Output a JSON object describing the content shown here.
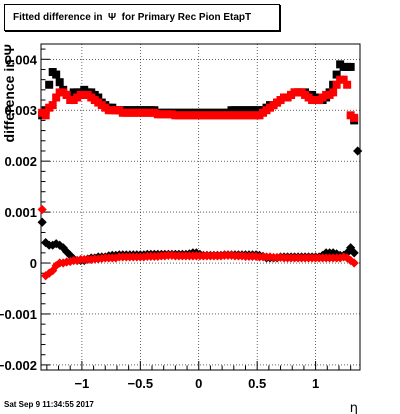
{
  "title": "Fitted difference in  Ψ  for Primary Rec Pion EtapT",
  "timestamp": "Sat Sep  9 11:34:55 2017",
  "chart_data": {
    "type": "scatter",
    "title": "Fitted difference in  Ψ  for Primary Rec Pion EtapT",
    "xlabel": "η",
    "ylabel": "difference in Ψ",
    "xlim": [
      -1.35,
      1.38
    ],
    "ylim": [
      -0.0021,
      0.0043
    ],
    "x_ticks": [
      -1,
      -0.5,
      0,
      0.5,
      1
    ],
    "x_tick_labels": [
      "−1",
      "−0.5",
      "0",
      "0.5",
      "1"
    ],
    "y_ticks": [
      -0.002,
      -0.001,
      0,
      0.001,
      0.002,
      0.003,
      0.004
    ],
    "y_tick_labels": [
      "−0.002",
      "−0.001",
      "0",
      "0.001",
      "0.002",
      "0.003",
      "0.004"
    ],
    "grid": true,
    "series": [
      {
        "color": "#000000",
        "marker": "square",
        "x": [
          -1.34,
          -1.31,
          -1.28,
          -1.25,
          -1.22,
          -1.19,
          -1.16,
          -1.13,
          -1.1,
          -1.07,
          -1.04,
          -1.01,
          -0.98,
          -0.95,
          -0.92,
          -0.89,
          -0.86,
          -0.83,
          -0.8,
          -0.77,
          -0.74,
          -0.71,
          -0.68,
          -0.65,
          -0.62,
          -0.59,
          -0.56,
          -0.53,
          -0.5,
          -0.47,
          -0.44,
          -0.41,
          -0.38,
          -0.35,
          -0.32,
          -0.29,
          -0.26,
          -0.23,
          -0.2,
          -0.17,
          -0.14,
          -0.11,
          -0.08,
          -0.05,
          -0.02,
          0.01,
          0.04,
          0.07,
          0.1,
          0.13,
          0.16,
          0.19,
          0.22,
          0.25,
          0.28,
          0.31,
          0.34,
          0.37,
          0.4,
          0.43,
          0.46,
          0.49,
          0.52,
          0.55,
          0.58,
          0.61,
          0.64,
          0.67,
          0.7,
          0.73,
          0.76,
          0.79,
          0.82,
          0.85,
          0.88,
          0.91,
          0.94,
          0.97,
          1.0,
          1.03,
          1.06,
          1.09,
          1.12,
          1.15,
          1.18,
          1.21,
          1.24,
          1.27,
          1.3,
          1.33
        ],
        "y": [
          0.0029,
          0.003,
          0.0035,
          0.00375,
          0.0037,
          0.00355,
          0.0034,
          0.0033,
          0.0033,
          0.00335,
          0.00335,
          0.00335,
          0.0034,
          0.00335,
          0.00335,
          0.0033,
          0.00325,
          0.00315,
          0.0031,
          0.00305,
          0.00305,
          0.003,
          0.003,
          0.003,
          0.003,
          0.003,
          0.003,
          0.003,
          0.003,
          0.003,
          0.003,
          0.003,
          0.003,
          0.00295,
          0.00295,
          0.00295,
          0.00295,
          0.00295,
          0.00295,
          0.00295,
          0.00295,
          0.00295,
          0.00295,
          0.00295,
          0.00295,
          0.00295,
          0.00295,
          0.00295,
          0.00295,
          0.00295,
          0.00295,
          0.00295,
          0.00295,
          0.00295,
          0.003,
          0.003,
          0.003,
          0.003,
          0.003,
          0.003,
          0.003,
          0.003,
          0.003,
          0.003,
          0.00305,
          0.0031,
          0.0031,
          0.00315,
          0.0032,
          0.00325,
          0.00325,
          0.0033,
          0.00335,
          0.00335,
          0.00335,
          0.00335,
          0.0033,
          0.0033,
          0.00325,
          0.0032,
          0.0032,
          0.00325,
          0.00335,
          0.0035,
          0.0037,
          0.0039,
          0.00385,
          0.00385,
          0.00385,
          0.0028
        ]
      },
      {
        "color": "#ff0000",
        "marker": "square",
        "x": [
          -1.34,
          -1.31,
          -1.28,
          -1.25,
          -1.22,
          -1.19,
          -1.16,
          -1.13,
          -1.1,
          -1.07,
          -1.04,
          -1.01,
          -0.98,
          -0.95,
          -0.92,
          -0.89,
          -0.86,
          -0.83,
          -0.8,
          -0.77,
          -0.74,
          -0.71,
          -0.68,
          -0.65,
          -0.62,
          -0.59,
          -0.56,
          -0.53,
          -0.5,
          -0.47,
          -0.44,
          -0.41,
          -0.38,
          -0.35,
          -0.32,
          -0.29,
          -0.26,
          -0.23,
          -0.2,
          -0.17,
          -0.14,
          -0.11,
          -0.08,
          -0.05,
          -0.02,
          0.01,
          0.04,
          0.07,
          0.1,
          0.13,
          0.16,
          0.19,
          0.22,
          0.25,
          0.28,
          0.31,
          0.34,
          0.37,
          0.4,
          0.43,
          0.46,
          0.49,
          0.52,
          0.55,
          0.58,
          0.61,
          0.64,
          0.67,
          0.7,
          0.73,
          0.76,
          0.79,
          0.82,
          0.85,
          0.88,
          0.91,
          0.94,
          0.97,
          1.0,
          1.03,
          1.06,
          1.09,
          1.12,
          1.15,
          1.18,
          1.21,
          1.24,
          1.27,
          1.3,
          1.33
        ],
        "y": [
          0.00295,
          0.0029,
          0.00305,
          0.0031,
          0.00325,
          0.00335,
          0.00335,
          0.0033,
          0.0032,
          0.0032,
          0.00325,
          0.0033,
          0.0033,
          0.0033,
          0.00325,
          0.0032,
          0.00315,
          0.0031,
          0.00305,
          0.003,
          0.003,
          0.003,
          0.003,
          0.00295,
          0.00295,
          0.00295,
          0.00295,
          0.00295,
          0.00295,
          0.00295,
          0.00295,
          0.00295,
          0.00295,
          0.00292,
          0.00292,
          0.00292,
          0.00292,
          0.00292,
          0.0029,
          0.0029,
          0.0029,
          0.0029,
          0.0029,
          0.0029,
          0.0029,
          0.0029,
          0.0029,
          0.0029,
          0.0029,
          0.0029,
          0.0029,
          0.0029,
          0.0029,
          0.0029,
          0.0029,
          0.0029,
          0.0029,
          0.0029,
          0.0029,
          0.0029,
          0.0029,
          0.0029,
          0.0029,
          0.00295,
          0.003,
          0.00305,
          0.0031,
          0.00315,
          0.0032,
          0.00325,
          0.00325,
          0.0033,
          0.00335,
          0.00335,
          0.00335,
          0.0033,
          0.00325,
          0.0032,
          0.0032,
          0.0032,
          0.00325,
          0.0033,
          0.0033,
          0.00335,
          0.0035,
          0.0036,
          0.0036,
          0.0035,
          0.0029,
          0.00285
        ]
      },
      {
        "color": "#000000",
        "marker": "diamond",
        "x": [
          -1.34,
          -1.31,
          -1.28,
          -1.25,
          -1.22,
          -1.19,
          -1.16,
          -1.13,
          -1.1,
          -1.07,
          -1.04,
          -1.01,
          -0.98,
          -0.95,
          -0.92,
          -0.89,
          -0.86,
          -0.83,
          -0.8,
          -0.77,
          -0.74,
          -0.71,
          -0.68,
          -0.65,
          -0.62,
          -0.59,
          -0.56,
          -0.53,
          -0.5,
          -0.47,
          -0.44,
          -0.41,
          -0.38,
          -0.35,
          -0.32,
          -0.29,
          -0.26,
          -0.23,
          -0.2,
          -0.17,
          -0.14,
          -0.11,
          -0.08,
          -0.05,
          -0.02,
          0.01,
          0.04,
          0.07,
          0.1,
          0.13,
          0.16,
          0.19,
          0.22,
          0.25,
          0.28,
          0.31,
          0.34,
          0.37,
          0.4,
          0.43,
          0.46,
          0.49,
          0.52,
          0.55,
          0.58,
          0.61,
          0.64,
          0.67,
          0.7,
          0.73,
          0.76,
          0.79,
          0.82,
          0.85,
          0.88,
          0.91,
          0.94,
          0.97,
          1.0,
          1.03,
          1.06,
          1.09,
          1.12,
          1.15,
          1.18,
          1.21,
          1.24,
          1.27,
          1.3,
          1.33,
          1.36
        ],
        "y": [
          0.0008,
          0.0004,
          0.00035,
          0.00035,
          0.00038,
          0.00035,
          0.0003,
          0.00022,
          0.00015,
          8e-05,
          5e-05,
          5e-05,
          5e-05,
          8e-05,
          0.0001,
          0.0001,
          0.00012,
          0.00012,
          0.00012,
          0.00014,
          0.00015,
          0.00015,
          0.00016,
          0.00016,
          0.00016,
          0.00016,
          0.00016,
          0.00016,
          0.00016,
          0.00016,
          0.00017,
          0.00017,
          0.00017,
          0.00017,
          0.00017,
          0.00017,
          0.00017,
          0.00017,
          0.00017,
          0.00017,
          0.00017,
          0.00017,
          0.00018,
          0.0002,
          0.0002,
          0.00017,
          0.00015,
          0.00015,
          0.00015,
          0.00015,
          0.00015,
          0.00015,
          0.00016,
          0.00016,
          0.00016,
          0.00016,
          0.00016,
          0.00016,
          0.00016,
          0.00016,
          0.00016,
          0.00016,
          0.00015,
          0.00013,
          0.0001,
          0.0001,
          0.0001,
          0.0001,
          0.00012,
          0.00012,
          0.00012,
          0.00012,
          0.00012,
          0.00012,
          0.00012,
          0.00012,
          0.00012,
          0.00012,
          0.00012,
          0.00012,
          0.00015,
          0.0002,
          0.0002,
          0.0002,
          0.00018,
          0.00015,
          0.00015,
          0.0002,
          0.0003,
          0.0002,
          0.0022
        ]
      },
      {
        "color": "#ff0000",
        "marker": "diamond",
        "x": [
          -1.34,
          -1.31,
          -1.28,
          -1.25,
          -1.22,
          -1.19,
          -1.16,
          -1.13,
          -1.1,
          -1.07,
          -1.04,
          -1.01,
          -0.98,
          -0.95,
          -0.92,
          -0.89,
          -0.86,
          -0.83,
          -0.8,
          -0.77,
          -0.74,
          -0.71,
          -0.68,
          -0.65,
          -0.62,
          -0.59,
          -0.56,
          -0.53,
          -0.5,
          -0.47,
          -0.44,
          -0.41,
          -0.38,
          -0.35,
          -0.32,
          -0.29,
          -0.26,
          -0.23,
          -0.2,
          -0.17,
          -0.14,
          -0.11,
          -0.08,
          -0.05,
          -0.02,
          0.01,
          0.04,
          0.07,
          0.1,
          0.13,
          0.16,
          0.19,
          0.22,
          0.25,
          0.28,
          0.31,
          0.34,
          0.37,
          0.4,
          0.43,
          0.46,
          0.49,
          0.52,
          0.55,
          0.58,
          0.61,
          0.64,
          0.67,
          0.7,
          0.73,
          0.76,
          0.79,
          0.82,
          0.85,
          0.88,
          0.91,
          0.94,
          0.97,
          1.0,
          1.03,
          1.06,
          1.09,
          1.12,
          1.15,
          1.18,
          1.21,
          1.24,
          1.27,
          1.3,
          1.33
        ],
        "y": [
          0.00105,
          -0.00025,
          -0.0002,
          -0.00015,
          -5e-05,
          0.0,
          0.0,
          2e-05,
          3e-05,
          5e-05,
          5e-05,
          7e-05,
          7e-05,
          7e-05,
          7e-05,
          8e-05,
          8e-05,
          9e-05,
          0.0001,
          0.0001,
          0.0001,
          0.0001,
          0.00012,
          0.00012,
          0.00012,
          0.00012,
          0.00012,
          0.00012,
          0.00012,
          0.00012,
          0.00013,
          0.00013,
          0.00013,
          0.00013,
          0.00014,
          0.00014,
          0.00015,
          0.00015,
          0.00014,
          0.00014,
          0.00014,
          0.00014,
          0.00014,
          0.00014,
          0.00014,
          0.00014,
          0.00014,
          0.00014,
          0.00014,
          0.00014,
          0.00014,
          0.00014,
          0.00015,
          0.00015,
          0.00015,
          0.00014,
          0.00014,
          0.00014,
          0.00013,
          0.00013,
          0.00013,
          0.00013,
          0.00012,
          0.00012,
          0.00012,
          0.00012,
          0.00011,
          0.00011,
          0.00011,
          0.0001,
          0.0001,
          0.0001,
          0.0001,
          0.0001,
          0.0001,
          0.0001,
          0.0001,
          0.0001,
          0.0001,
          0.0001,
          0.0001,
          0.0001,
          0.0001,
          0.0001,
          0.0001,
          0.0001,
          0.00012,
          0.0001,
          5e-05,
          0.0
        ]
      }
    ]
  }
}
